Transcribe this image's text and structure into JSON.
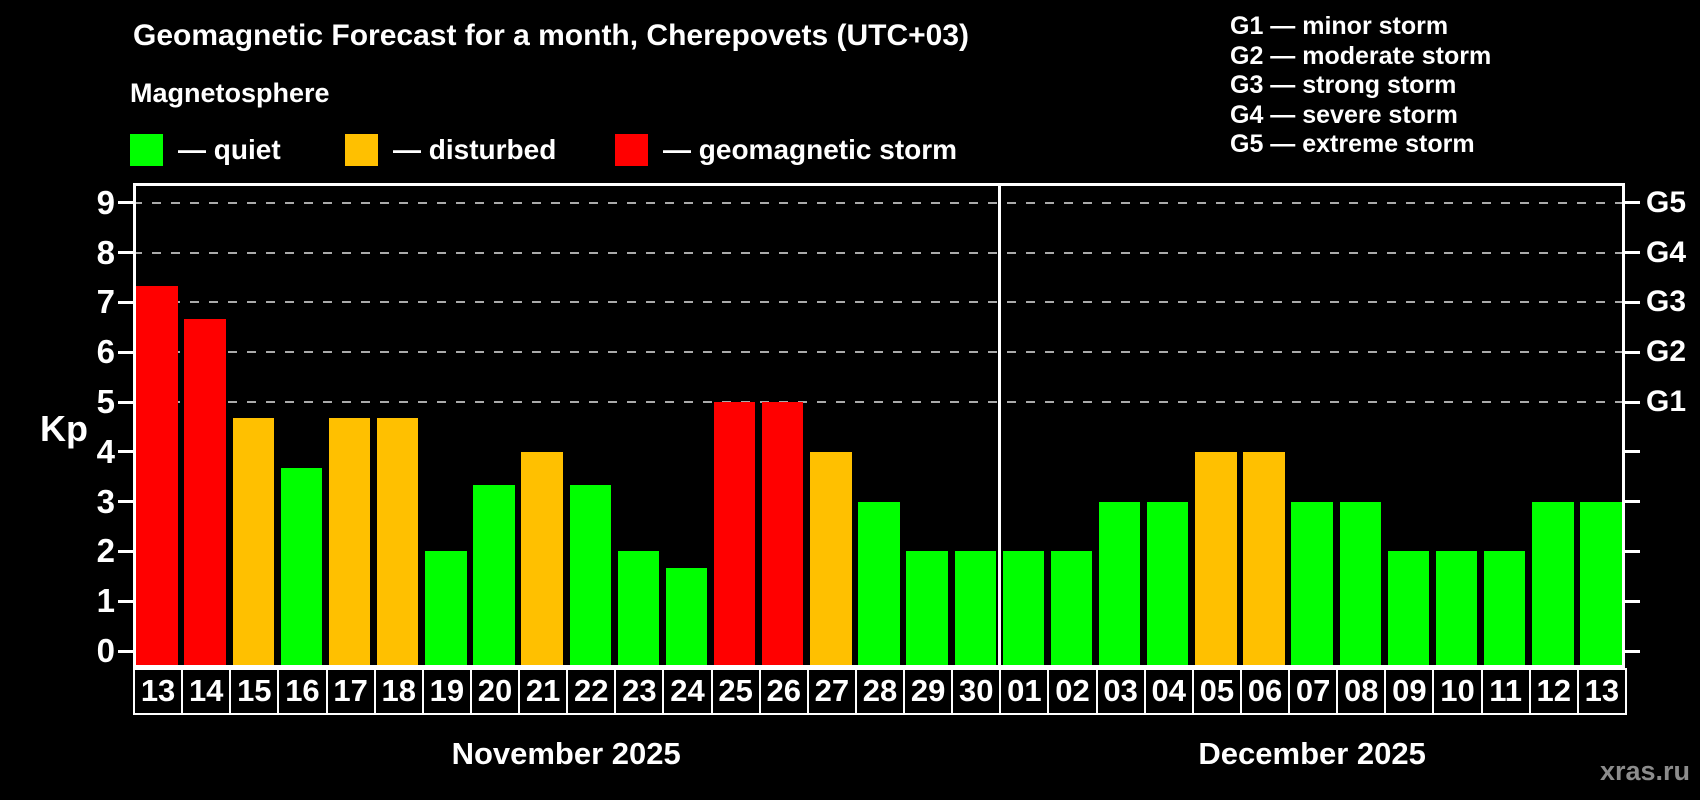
{
  "title": "Geomagnetic Forecast for a month, Cherepovets (UTC+03)",
  "subtitle": "Magnetosphere",
  "y_axis_label": "Kp",
  "watermark": "xras.ru",
  "legend": {
    "quiet": "— quiet",
    "disturbed": "— disturbed",
    "storm": "— geomagnetic storm"
  },
  "g_scale": [
    "G1 — minor storm",
    "G2 — moderate storm",
    "G3 — strong storm",
    "G4 — severe storm",
    "G5 — extreme storm"
  ],
  "chart_data": {
    "type": "bar",
    "title": "Geomagnetic Forecast for a month, Cherepovets (UTC+03)",
    "xlabel": "",
    "ylabel": "Kp",
    "ylim": [
      0,
      9
    ],
    "y_ticks": [
      0,
      1,
      2,
      3,
      4,
      5,
      6,
      7,
      8,
      9
    ],
    "gridlines_at": [
      5,
      6,
      7,
      8,
      9
    ],
    "grid": "dashed-horizontal-top-half",
    "legend_position": "top-left",
    "right_axis_labels": {
      "5": "G1",
      "6": "G2",
      "7": "G3",
      "8": "G4",
      "9": "G5"
    },
    "status_colors": {
      "quiet": "#00ff00",
      "disturbed": "#ffc000",
      "storm": "#ff0000"
    },
    "months": [
      {
        "label": "November 2025",
        "categories": [
          "13",
          "14",
          "15",
          "16",
          "17",
          "18",
          "19",
          "20",
          "21",
          "22",
          "23",
          "24",
          "25",
          "26",
          "27",
          "28",
          "29",
          "30"
        ],
        "values": [
          7.33,
          6.67,
          4.67,
          3.67,
          4.67,
          4.67,
          2,
          3.33,
          4,
          3.33,
          2,
          1.67,
          5,
          5,
          4,
          3,
          2,
          2
        ],
        "statuses": [
          "storm",
          "storm",
          "disturbed",
          "quiet",
          "disturbed",
          "disturbed",
          "quiet",
          "quiet",
          "disturbed",
          "quiet",
          "quiet",
          "quiet",
          "storm",
          "storm",
          "disturbed",
          "quiet",
          "quiet",
          "quiet"
        ]
      },
      {
        "label": "December 2025",
        "categories": [
          "01",
          "02",
          "03",
          "04",
          "05",
          "06",
          "07",
          "08",
          "09",
          "10",
          "11",
          "12",
          "13"
        ],
        "values": [
          2,
          2,
          3,
          3,
          4,
          4,
          3,
          3,
          2,
          2,
          2,
          3,
          3
        ],
        "statuses": [
          "quiet",
          "quiet",
          "quiet",
          "quiet",
          "disturbed",
          "disturbed",
          "quiet",
          "quiet",
          "quiet",
          "quiet",
          "quiet",
          "quiet",
          "quiet"
        ]
      }
    ]
  }
}
